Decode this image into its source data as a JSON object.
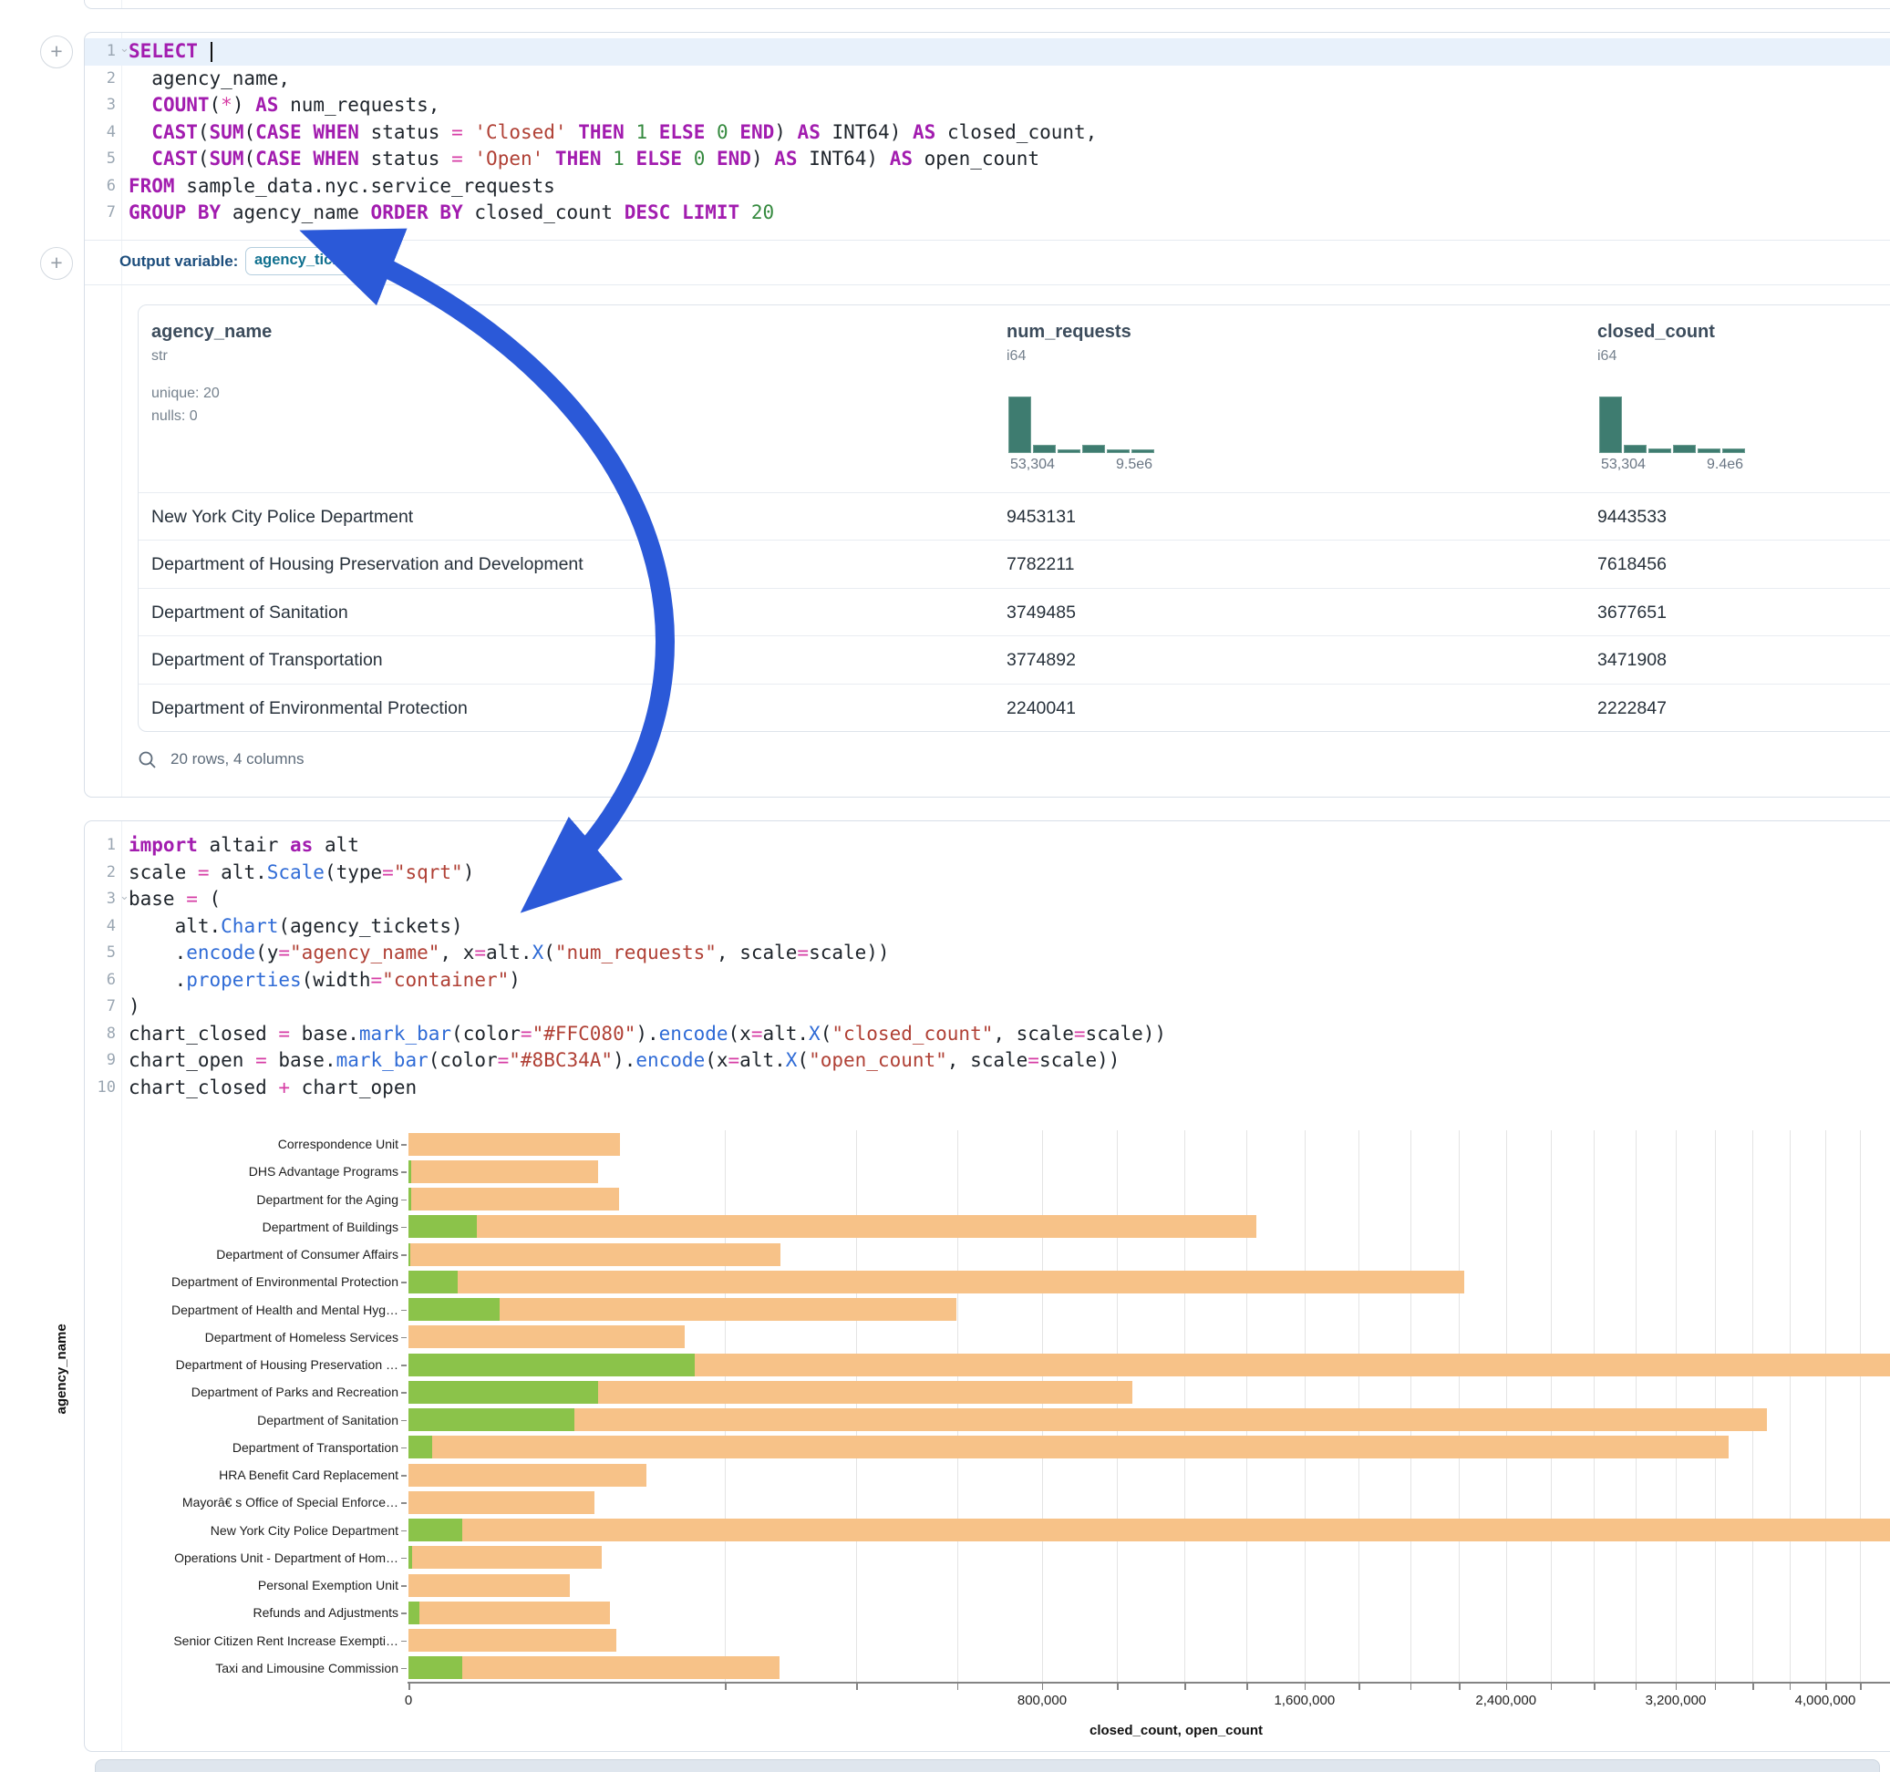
{
  "colors": {
    "bar_closed_render": "#F7C288",
    "bar_open_render": "#8BC34A",
    "histogram": "#3e7c70",
    "annotation_arrow": "#2b59d8"
  },
  "sql_cell": {
    "lines": [
      {
        "n": "1",
        "collapse": true,
        "active": true,
        "caret": true,
        "tokens": [
          [
            "kw",
            "SELECT"
          ],
          [
            "pl",
            " "
          ]
        ]
      },
      {
        "n": "2",
        "tokens": [
          [
            "pl",
            "  agency_name,"
          ]
        ]
      },
      {
        "n": "3",
        "tokens": [
          [
            "pl",
            "  "
          ],
          [
            "kw",
            "COUNT"
          ],
          [
            "pl",
            "("
          ],
          [
            "op",
            "*"
          ],
          [
            "pl",
            ") "
          ],
          [
            "kw",
            "AS"
          ],
          [
            "pl",
            " num_requests,"
          ]
        ]
      },
      {
        "n": "4",
        "tokens": [
          [
            "pl",
            "  "
          ],
          [
            "kw",
            "CAST"
          ],
          [
            "pl",
            "("
          ],
          [
            "kw",
            "SUM"
          ],
          [
            "pl",
            "("
          ],
          [
            "kw",
            "CASE"
          ],
          [
            "pl",
            " "
          ],
          [
            "kw",
            "WHEN"
          ],
          [
            "pl",
            " status "
          ],
          [
            "op",
            "="
          ],
          [
            "pl",
            " "
          ],
          [
            "str",
            "'Closed'"
          ],
          [
            "pl",
            " "
          ],
          [
            "kw",
            "THEN"
          ],
          [
            "pl",
            " "
          ],
          [
            "num",
            "1"
          ],
          [
            "pl",
            " "
          ],
          [
            "kw",
            "ELSE"
          ],
          [
            "pl",
            " "
          ],
          [
            "num",
            "0"
          ],
          [
            "pl",
            " "
          ],
          [
            "kw",
            "END"
          ],
          [
            "pl",
            ") "
          ],
          [
            "kw",
            "AS"
          ],
          [
            "pl",
            " INT64) "
          ],
          [
            "kw",
            "AS"
          ],
          [
            "pl",
            " closed_count,"
          ]
        ]
      },
      {
        "n": "5",
        "tokens": [
          [
            "pl",
            "  "
          ],
          [
            "kw",
            "CAST"
          ],
          [
            "pl",
            "("
          ],
          [
            "kw",
            "SUM"
          ],
          [
            "pl",
            "("
          ],
          [
            "kw",
            "CASE"
          ],
          [
            "pl",
            " "
          ],
          [
            "kw",
            "WHEN"
          ],
          [
            "pl",
            " status "
          ],
          [
            "op",
            "="
          ],
          [
            "pl",
            " "
          ],
          [
            "str",
            "'Open'"
          ],
          [
            "pl",
            " "
          ],
          [
            "kw",
            "THEN"
          ],
          [
            "pl",
            " "
          ],
          [
            "num",
            "1"
          ],
          [
            "pl",
            " "
          ],
          [
            "kw",
            "ELSE"
          ],
          [
            "pl",
            " "
          ],
          [
            "num",
            "0"
          ],
          [
            "pl",
            " "
          ],
          [
            "kw",
            "END"
          ],
          [
            "pl",
            ") "
          ],
          [
            "kw",
            "AS"
          ],
          [
            "pl",
            " INT64) "
          ],
          [
            "kw",
            "AS"
          ],
          [
            "pl",
            " open_count"
          ]
        ]
      },
      {
        "n": "6",
        "tokens": [
          [
            "kw",
            "FROM"
          ],
          [
            "pl",
            " sample_data.nyc.service_requests"
          ]
        ]
      },
      {
        "n": "7",
        "tokens": [
          [
            "kw",
            "GROUP"
          ],
          [
            "pl",
            " "
          ],
          [
            "kw",
            "BY"
          ],
          [
            "pl",
            " agency_name "
          ],
          [
            "kw",
            "ORDER"
          ],
          [
            "pl",
            " "
          ],
          [
            "kw",
            "BY"
          ],
          [
            "pl",
            " closed_count "
          ],
          [
            "kw",
            "DESC"
          ],
          [
            "pl",
            " "
          ],
          [
            "kw",
            "LIMIT"
          ],
          [
            "pl",
            " "
          ],
          [
            "num",
            "20"
          ]
        ]
      }
    ]
  },
  "output_row": {
    "label": "Output variable:",
    "variable": "agency_tickets"
  },
  "table": {
    "columns": [
      {
        "name": "agency_name",
        "type": "str",
        "stats": [
          "unique: 20",
          "nulls: 0"
        ],
        "x": 14
      },
      {
        "name": "num_requests",
        "type": "i64",
        "x": 952,
        "hist": {
          "bars": [
            100,
            15,
            7,
            15,
            7,
            7
          ],
          "min_label": "53,304",
          "max_label": "9.5e6"
        }
      },
      {
        "name": "closed_count",
        "type": "i64",
        "x": 1600,
        "hist": {
          "bars": [
            100,
            14,
            8,
            15,
            8,
            8
          ],
          "min_label": "53,304",
          "max_label": "9.4e6"
        }
      }
    ],
    "rows": [
      [
        "New York City Police Department",
        "9453131",
        "9443533"
      ],
      [
        "Department of Housing Preservation and Development",
        "7782211",
        "7618456"
      ],
      [
        "Department of Sanitation",
        "3749485",
        "3677651"
      ],
      [
        "Department of Transportation",
        "3774892",
        "3471908"
      ],
      [
        "Department of Environmental Protection",
        "2240041",
        "2222847"
      ]
    ],
    "footer": "20 rows, 4 columns"
  },
  "python_cell": {
    "lines": [
      {
        "n": "1",
        "tokens": [
          [
            "kw",
            "import"
          ],
          [
            "pl",
            " altair "
          ],
          [
            "kw",
            "as"
          ],
          [
            "pl",
            " alt"
          ]
        ]
      },
      {
        "n": "2",
        "tokens": [
          [
            "pl",
            "scale "
          ],
          [
            "op",
            "="
          ],
          [
            "pl",
            " alt."
          ],
          [
            "mth",
            "Scale"
          ],
          [
            "pl",
            "(type"
          ],
          [
            "op",
            "="
          ],
          [
            "str",
            "\"sqrt\""
          ],
          [
            "pl",
            ")"
          ]
        ]
      },
      {
        "n": "3",
        "collapse": true,
        "tokens": [
          [
            "pl",
            "base "
          ],
          [
            "op",
            "="
          ],
          [
            "pl",
            " ("
          ]
        ]
      },
      {
        "n": "4",
        "tokens": [
          [
            "pl",
            "    alt."
          ],
          [
            "mth",
            "Chart"
          ],
          [
            "pl",
            "(agency_tickets)"
          ]
        ]
      },
      {
        "n": "5",
        "tokens": [
          [
            "pl",
            "    ."
          ],
          [
            "mth",
            "encode"
          ],
          [
            "pl",
            "(y"
          ],
          [
            "op",
            "="
          ],
          [
            "str",
            "\"agency_name\""
          ],
          [
            "pl",
            ", x"
          ],
          [
            "op",
            "="
          ],
          [
            "pl",
            "alt."
          ],
          [
            "mth",
            "X"
          ],
          [
            "pl",
            "("
          ],
          [
            "str",
            "\"num_requests\""
          ],
          [
            "pl",
            ", scale"
          ],
          [
            "op",
            "="
          ],
          [
            "pl",
            "scale))"
          ]
        ]
      },
      {
        "n": "6",
        "tokens": [
          [
            "pl",
            "    ."
          ],
          [
            "mth",
            "properties"
          ],
          [
            "pl",
            "(width"
          ],
          [
            "op",
            "="
          ],
          [
            "str",
            "\"container\""
          ],
          [
            "pl",
            ")"
          ]
        ]
      },
      {
        "n": "7",
        "tokens": [
          [
            "pl",
            ")"
          ]
        ]
      },
      {
        "n": "8",
        "tokens": [
          [
            "pl",
            "chart_closed "
          ],
          [
            "op",
            "="
          ],
          [
            "pl",
            " base."
          ],
          [
            "mth",
            "mark_bar"
          ],
          [
            "pl",
            "(color"
          ],
          [
            "op",
            "="
          ],
          [
            "str",
            "\"#FFC080\""
          ],
          [
            "pl",
            ")."
          ],
          [
            "mth",
            "encode"
          ],
          [
            "pl",
            "(x"
          ],
          [
            "op",
            "="
          ],
          [
            "pl",
            "alt."
          ],
          [
            "mth",
            "X"
          ],
          [
            "pl",
            "("
          ],
          [
            "str",
            "\"closed_count\""
          ],
          [
            "pl",
            ", scale"
          ],
          [
            "op",
            "="
          ],
          [
            "pl",
            "scale))"
          ]
        ]
      },
      {
        "n": "9",
        "tokens": [
          [
            "pl",
            "chart_open "
          ],
          [
            "op",
            "="
          ],
          [
            "pl",
            " base."
          ],
          [
            "mth",
            "mark_bar"
          ],
          [
            "pl",
            "(color"
          ],
          [
            "op",
            "="
          ],
          [
            "str",
            "\"#8BC34A\""
          ],
          [
            "pl",
            ")."
          ],
          [
            "mth",
            "encode"
          ],
          [
            "pl",
            "(x"
          ],
          [
            "op",
            "="
          ],
          [
            "pl",
            "alt."
          ],
          [
            "mth",
            "X"
          ],
          [
            "pl",
            "("
          ],
          [
            "str",
            "\"open_count\""
          ],
          [
            "pl",
            ", scale"
          ],
          [
            "op",
            "="
          ],
          [
            "pl",
            "scale))"
          ]
        ]
      },
      {
        "n": "10",
        "tokens": [
          [
            "pl",
            "chart_closed "
          ],
          [
            "op",
            "+"
          ],
          [
            "pl",
            " chart_open"
          ]
        ]
      }
    ]
  },
  "chart_data": {
    "type": "bar",
    "orientation": "horizontal",
    "x_scale": "sqrt",
    "grid": true,
    "gridline_step": 200000,
    "xlabel": "closed_count, open_count",
    "ylabel": "agency_name",
    "x_ticks": [
      {
        "label": "0",
        "value": 0
      },
      {
        "label": "800,000",
        "value": 800000
      },
      {
        "label": "1,600,000",
        "value": 1600000
      },
      {
        "label": "2,400,000",
        "value": 2400000
      },
      {
        "label": "3,200,000",
        "value": 3200000
      },
      {
        "label": "4,000,000",
        "value": 4000000
      }
    ],
    "categories": [
      "Correspondence Unit",
      "DHS Advantage Programs",
      "Department for the Aging",
      "Department of Buildings",
      "Department of Consumer Affairs",
      "Department of Environmental Protection",
      "Department of Health and Mental Hyg…",
      "Department of Homeless Services",
      "Department of Housing Preservation …",
      "Department of Parks and Recreation",
      "Department of Sanitation",
      "Department of Transportation",
      "HRA Benefit Card Replacement",
      "Mayorâ€ s Office of Special Enforce…",
      "New York City Police Department",
      "Operations Unit - Department of Hom…",
      "Personal Exemption Unit",
      "Refunds and Adjustments",
      "Senior Citizen Rent Increase Exempti…",
      "Taxi and Limousine Commission"
    ],
    "series": [
      {
        "name": "closed_count",
        "color": "#F7C288",
        "values": [
          89000,
          71700,
          88400,
          1433000,
          276000,
          2222847,
          598000,
          152000,
          7618456,
          1044000,
          3677651,
          3471908,
          112900,
          68900,
          9443533,
          74400,
          51900,
          80900,
          86100,
          274400
        ]
      },
      {
        "name": "open_count",
        "color": "#8BC34A",
        "values": [
          0,
          12,
          12,
          9400,
          10,
          4850,
          16500,
          0,
          163755,
          71700,
          55000,
          1120,
          0,
          0,
          5770,
          30,
          0,
          240,
          0,
          5770
        ]
      }
    ]
  }
}
